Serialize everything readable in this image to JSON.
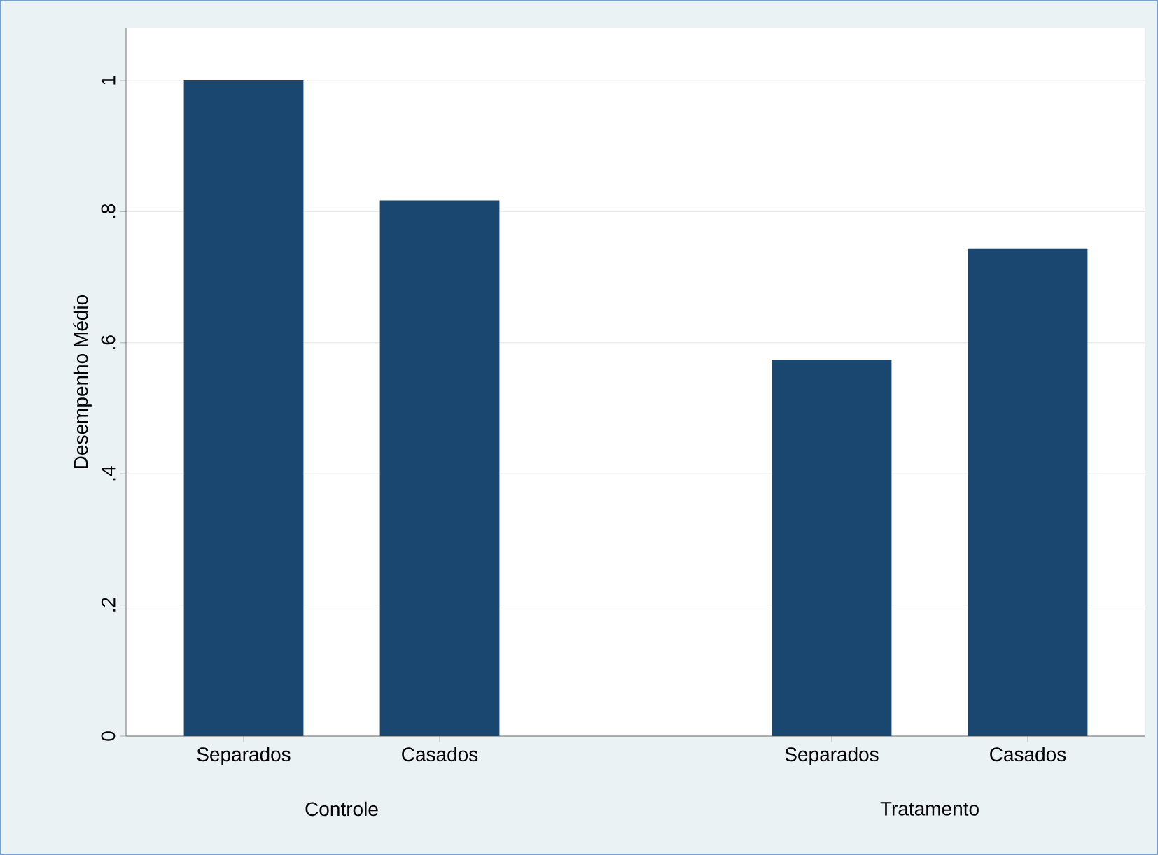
{
  "chart_data": {
    "type": "bar",
    "ylabel": "Desempenho Médio",
    "categories": [
      "Separados",
      "Casados",
      null,
      "Separados",
      "Casados"
    ],
    "values": [
      1.0,
      0.817,
      null,
      0.574,
      0.743
    ],
    "color": "#1a476f",
    "ylim": [
      0,
      1.08
    ],
    "yticks": [
      0,
      {
        "value": 0.2,
        "label": ".2"
      },
      {
        "value": 0.4,
        "label": ".4"
      },
      {
        "value": 0.6,
        "label": ".6"
      },
      {
        "value": 0.8,
        "label": ".8"
      },
      1
    ],
    "grid": "y",
    "annotations": [
      "Controle",
      "Tratamento"
    ]
  }
}
